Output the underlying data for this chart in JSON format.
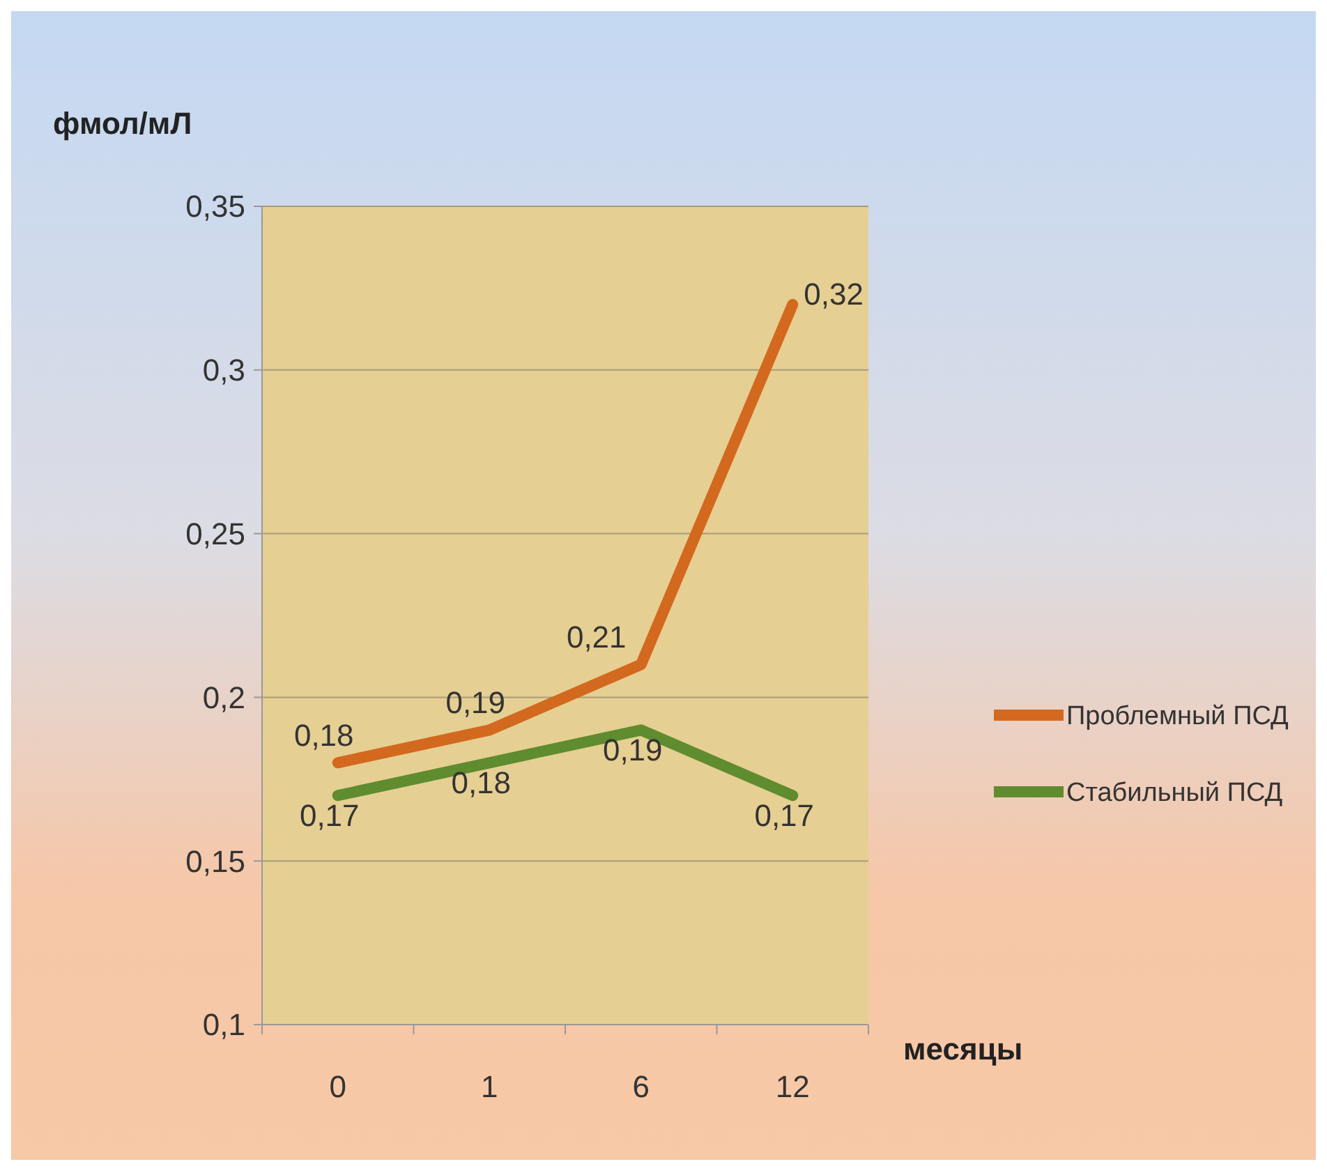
{
  "chart_data": {
    "type": "line",
    "ylabel": "фмол/мЛ",
    "xlabel": "месяцы",
    "categories": [
      "0",
      "1",
      "6",
      "12"
    ],
    "ylim": [
      0.1,
      0.35
    ],
    "yticks": [
      {
        "value": 0.1,
        "label": "0,1"
      },
      {
        "value": 0.15,
        "label": "0,15"
      },
      {
        "value": 0.2,
        "label": "0,2"
      },
      {
        "value": 0.25,
        "label": "0,25"
      },
      {
        "value": 0.3,
        "label": "0,3"
      },
      {
        "value": 0.35,
        "label": "0,35"
      }
    ],
    "grid": "y",
    "legend": "right",
    "marker": "none",
    "line_style": "solid",
    "series": [
      {
        "name": "Проблемный ПСД",
        "color": "#d2691e",
        "values": [
          0.18,
          0.19,
          0.21,
          0.32
        ],
        "value_labels": [
          "0,18",
          "0,19",
          "0,21",
          "0,32"
        ]
      },
      {
        "name": "Стабильный ПСД",
        "color": "#5e8c2e",
        "values": [
          0.17,
          0.18,
          0.19,
          0.17
        ],
        "value_labels": [
          "0,17",
          "0,18",
          "0,19",
          "0,17"
        ]
      }
    ]
  }
}
